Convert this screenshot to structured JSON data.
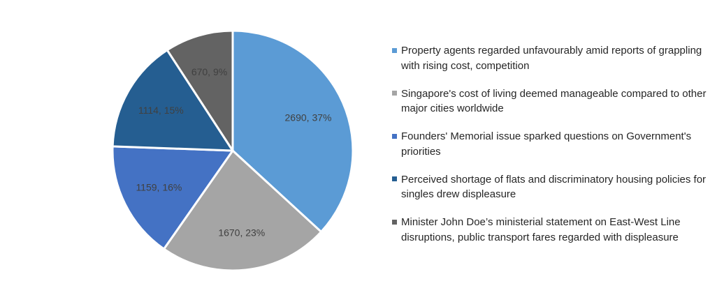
{
  "chart_data": {
    "type": "pie",
    "title": "",
    "legend_position": "right",
    "series": [
      {
        "name": "",
        "slices": [
          {
            "label": "Property agents regarded unfavourably amid reports of grappling with rising cost, competition",
            "value": 2690,
            "percent": 37,
            "data_label": "2690, 37%",
            "color": "#5b9bd5"
          },
          {
            "label": "Singapore's cost of living deemed manageable compared to other major cities worldwide",
            "value": 1670,
            "percent": 23,
            "data_label": "1670, 23%",
            "color": "#a5a5a5"
          },
          {
            "label": "Founders' Memorial issue sparked questions on Government's priorities",
            "value": 1159,
            "percent": 16,
            "data_label": "1159, 16%",
            "color": "#4472c4"
          },
          {
            "label": "Perceived shortage of flats and discriminatory housing policies for singles drew displeasure",
            "value": 1114,
            "percent": 15,
            "data_label": "1114, 15%",
            "color": "#255e91"
          },
          {
            "label": "Minister John Doe’s ministerial statement on East-West Line disruptions, public transport fares regarded with displeasure",
            "value": 670,
            "percent": 9,
            "data_label": "670, 9%",
            "color": "#636363"
          }
        ]
      }
    ]
  }
}
